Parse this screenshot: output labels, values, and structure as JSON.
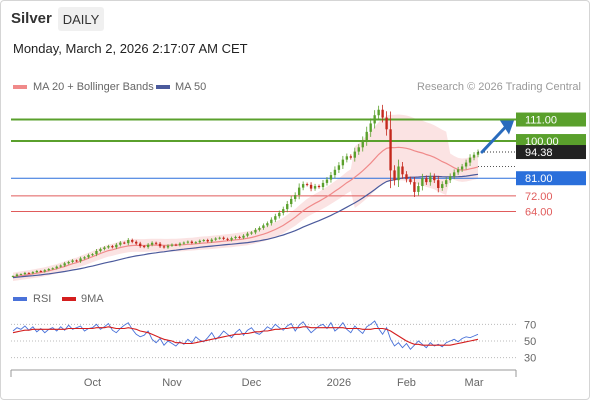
{
  "header": {
    "instrument": "Silver",
    "timeframe": "DAILY",
    "datetime": "Monday, March 2, 2026 2:17:07 AM CET"
  },
  "legend": {
    "ma20_label": "MA 20 + Bollinger Bands",
    "ma50_label": "MA 50",
    "credit": "Research © 2026 Trading Central"
  },
  "colors": {
    "up": "#5aa02c",
    "resistance": "#5aa02c",
    "pivot": "#2a6fdb",
    "support": "#e05b5b",
    "ma20": "#f08a8a",
    "bollinger_fill": "#fbe3e3",
    "ma50": "#4b5a9c",
    "price_badge": "#222222",
    "rsi": "#4a72d9",
    "rsi_ma": "#d41e1e",
    "arrow": "#2a6bbd"
  },
  "chart_data": [
    {
      "type": "candlestick",
      "x_axis_labels": [
        "Oct",
        "Nov",
        "Dec",
        "2026",
        "Feb",
        "Mar"
      ],
      "y_range": [
        30,
        122
      ],
      "last_price": 94.38,
      "levels": [
        {
          "label": "111.00",
          "value": 111.0,
          "kind": "resistance"
        },
        {
          "label": "100.00",
          "value": 100.0,
          "kind": "resistance"
        },
        {
          "label": "81.00",
          "value": 81.0,
          "kind": "pivot"
        },
        {
          "label": "72.00",
          "value": 72.0,
          "kind": "support"
        },
        {
          "label": "64.00",
          "value": 64.0,
          "kind": "support"
        }
      ],
      "price_label": "94.38",
      "close_series": [
        31.0,
        31.8,
        32.0,
        32.6,
        32.4,
        33.0,
        33.6,
        33.3,
        34.0,
        34.6,
        35.0,
        35.8,
        36.4,
        37.5,
        38.2,
        39.0,
        38.6,
        40.0,
        40.6,
        41.7,
        42.2,
        43.8,
        44.8,
        45.6,
        46.3,
        45.7,
        47.0,
        48.1,
        47.8,
        49.4,
        48.5,
        47.6,
        46.3,
        45.8,
        47.0,
        48.0,
        47.5,
        46.2,
        45.6,
        46.5,
        47.1,
        46.8,
        47.6,
        48.1,
        48.6,
        47.9,
        48.3,
        49.0,
        49.4,
        48.7,
        49.6,
        50.2,
        50.6,
        50.0,
        49.5,
        50.4,
        51.0,
        50.6,
        51.6,
        52.7,
        53.3,
        54.6,
        55.6,
        56.9,
        58.0,
        59.8,
        61.6,
        63.3,
        65.2,
        67.8,
        70.4,
        72.4,
        76.2,
        78.0,
        77.6,
        75.7,
        77.0,
        76.5,
        78.6,
        80.3,
        82.6,
        85.3,
        87.6,
        90.5,
        92.2,
        91.5,
        94.6,
        96.8,
        100.2,
        104.7,
        109.0,
        113.2,
        116.0,
        112.0,
        106.0,
        85.0,
        80.0,
        87.0,
        83.0,
        80.5,
        79.0,
        74.0,
        77.0,
        81.0,
        79.0,
        82.0,
        80.0,
        76.0,
        78.0,
        80.0,
        82.0,
        84.0,
        85.5,
        87.0,
        89.0,
        91.5,
        93.0,
        94.38
      ],
      "ma20_series": [
        30.6,
        30.9,
        31.2,
        31.5,
        31.8,
        32.1,
        32.5,
        32.8,
        33.2,
        33.7,
        34.2,
        34.7,
        35.3,
        35.9,
        36.6,
        37.3,
        37.8,
        38.6,
        39.3,
        40.1,
        40.9,
        41.7,
        42.5,
        43.3,
        44.0,
        44.4,
        45.0,
        45.6,
        46.0,
        46.4,
        46.6,
        46.7,
        46.6,
        46.6,
        46.7,
        46.8,
        46.8,
        46.8,
        46.7,
        46.7,
        46.8,
        46.8,
        46.9,
        47.0,
        47.2,
        47.3,
        47.5,
        47.7,
        47.9,
        48.0,
        48.2,
        48.4,
        48.6,
        48.8,
        49.0,
        49.2,
        49.5,
        49.7,
        50.0,
        50.3,
        50.7,
        51.2,
        51.8,
        52.4,
        53.1,
        53.9,
        54.8,
        55.8,
        56.9,
        58.2,
        59.6,
        61.0,
        62.7,
        64.3,
        65.8,
        67.0,
        68.2,
        69.2,
        70.4,
        71.6,
        72.9,
        74.3,
        75.7,
        77.2,
        78.7,
        80.0,
        81.5,
        83.1,
        84.8,
        86.7,
        88.7,
        90.9,
        93.1,
        94.9,
        96.3,
        96.7,
        96.6,
        96.8,
        96.6,
        96.3,
        95.8,
        95.0,
        94.4,
        93.9,
        93.1,
        92.5,
        91.7,
        90.6,
        89.5,
        88.6,
        87.5,
        86.3,
        85.4,
        85.1,
        85.3,
        85.8,
        86.2,
        86.8
      ],
      "ma50_series": [
        30.2,
        30.4,
        30.6,
        30.8,
        31.0,
        31.2,
        31.4,
        31.6,
        31.9,
        32.1,
        32.4,
        32.7,
        33.0,
        33.3,
        33.7,
        34.1,
        34.4,
        34.8,
        35.2,
        35.7,
        36.1,
        36.6,
        37.1,
        37.6,
        38.1,
        38.5,
        39.0,
        39.5,
        40.0,
        40.5,
        40.9,
        41.3,
        41.6,
        41.9,
        42.3,
        42.6,
        42.9,
        43.2,
        43.4,
        43.7,
        44.0,
        44.2,
        44.5,
        44.7,
        45.0,
        45.2,
        45.4,
        45.7,
        45.9,
        46.1,
        46.3,
        46.5,
        46.7,
        46.9,
        47.1,
        47.3,
        47.5,
        47.7,
        47.9,
        48.1,
        48.4,
        48.7,
        49.0,
        49.4,
        49.8,
        50.3,
        50.8,
        51.4,
        52.0,
        52.7,
        53.4,
        54.2,
        55.1,
        56.0,
        56.9,
        57.7,
        58.5,
        59.3,
        60.2,
        61.1,
        62.0,
        63.0,
        64.0,
        65.1,
        66.2,
        67.3,
        68.4,
        69.6,
        70.9,
        72.3,
        73.7,
        75.2,
        76.7,
        78.1,
        79.3,
        79.9,
        80.2,
        80.7,
        81.1,
        81.3,
        81.5,
        81.5,
        81.6,
        81.8,
        81.9,
        82.0,
        82.0,
        81.9,
        81.8,
        81.7,
        81.7,
        81.7,
        81.8,
        81.9,
        82.1,
        82.4,
        82.7,
        83.0
      ]
    },
    {
      "type": "line",
      "series_names": [
        "RSI",
        "9MA"
      ],
      "y_ticks": [
        70,
        50,
        30
      ],
      "y_range": [
        20,
        80
      ],
      "rsi_series": [
        62,
        66,
        64,
        68,
        63,
        67,
        61,
        65,
        60,
        64,
        66,
        62,
        67,
        63,
        69,
        64,
        66,
        68,
        62,
        65,
        66,
        70,
        64,
        67,
        71,
        63,
        60,
        65,
        69,
        72,
        64,
        58,
        55,
        57,
        62,
        52,
        48,
        53,
        45,
        50,
        47,
        44,
        49,
        46,
        52,
        48,
        55,
        51,
        49,
        54,
        60,
        52,
        56,
        62,
        58,
        54,
        60,
        64,
        57,
        63,
        66,
        60,
        58,
        62,
        67,
        64,
        70,
        66,
        63,
        68,
        71,
        62,
        69,
        73,
        66,
        60,
        64,
        68,
        70,
        65,
        72,
        62,
        66,
        72,
        64,
        60,
        68,
        63,
        59,
        67,
        70,
        74,
        65,
        58,
        66,
        52,
        44,
        48,
        42,
        47,
        40,
        45,
        50,
        46,
        42,
        48,
        44,
        46,
        43,
        48,
        50,
        52,
        49,
        53,
        55,
        54,
        56,
        58
      ],
      "rsi_ma_series": [
        60,
        61,
        62,
        63,
        63,
        64,
        64,
        64,
        64,
        64,
        64,
        64,
        64,
        64,
        65,
        65,
        65,
        65,
        65,
        65,
        65,
        66,
        66,
        66,
        67,
        66,
        65,
        65,
        65,
        66,
        65,
        64,
        62,
        61,
        60,
        58,
        56,
        54,
        52,
        51,
        50,
        48,
        48,
        47,
        47,
        47,
        48,
        49,
        50,
        51,
        52,
        53,
        54,
        55,
        56,
        57,
        58,
        58,
        59,
        59,
        60,
        61,
        61,
        62,
        62,
        63,
        64,
        64,
        65,
        65,
        66,
        66,
        66,
        67,
        67,
        66,
        66,
        66,
        66,
        66,
        66,
        66,
        66,
        66,
        65,
        65,
        65,
        65,
        64,
        64,
        64,
        65,
        65,
        65,
        64,
        62,
        59,
        56,
        53,
        50,
        48,
        46,
        46,
        45,
        45,
        45,
        45,
        45,
        45,
        45,
        45,
        46,
        47,
        48,
        49,
        50,
        51,
        52
      ]
    }
  ]
}
